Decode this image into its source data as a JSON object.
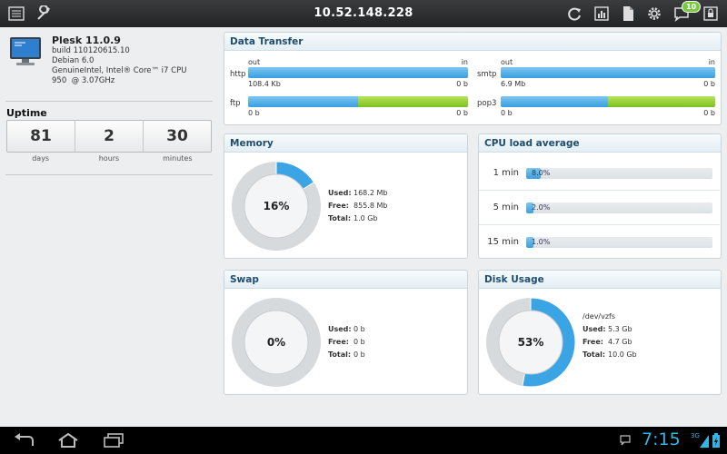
{
  "topbar": {
    "title": "10.52.148.228",
    "notification_count": "10",
    "icons": [
      "list-icon",
      "wrench-icon",
      "refresh-icon",
      "report-icon",
      "document-icon",
      "gear-icon",
      "notification-icon",
      "lock-icon"
    ]
  },
  "system": {
    "product": "Plesk 11.0.9",
    "build": "build 110120615.10",
    "os": "Debian 6.0",
    "cpu": "GenuineIntel, Intel® Core™ i7 CPU      950  @ 3.07GHz"
  },
  "uptime": {
    "title": "Uptime",
    "days": "81",
    "hours": "2",
    "minutes": "30",
    "days_label": "days",
    "hours_label": "hours",
    "minutes_label": "minutes"
  },
  "data_transfer": {
    "title": "Data Transfer",
    "out_label": "out",
    "in_label": "in",
    "services": [
      {
        "name": "http",
        "out": "108.4 Kb",
        "in": "0 b",
        "out_fraction": 1.0
      },
      {
        "name": "smtp",
        "out": "6.9 Mb",
        "in": "0 b",
        "out_fraction": 1.0
      },
      {
        "name": "ftp",
        "out": "0 b",
        "in": "0 b",
        "out_fraction": 0.5
      },
      {
        "name": "pop3",
        "out": "0 b",
        "in": "0 b",
        "out_fraction": 0.5
      }
    ]
  },
  "memory": {
    "title": "Memory",
    "percent": "16%",
    "fraction": 0.16,
    "used_label": "Used:",
    "used": "168.2 Mb",
    "free_label": "Free:",
    "free": "855.8 Mb",
    "total_label": "Total:",
    "total": "1.0 Gb"
  },
  "cpu": {
    "title": "CPU load average",
    "rows": [
      {
        "label": "1 min",
        "value": "8.0%",
        "fraction": 0.08
      },
      {
        "label": "5 min",
        "value": "2.0%",
        "fraction": 0.02
      },
      {
        "label": "15 min",
        "value": "1.0%",
        "fraction": 0.01
      }
    ]
  },
  "swap": {
    "title": "Swap",
    "percent": "0%",
    "fraction": 0.0,
    "used_label": "Used:",
    "used": "0 b",
    "free_label": "Free:",
    "free": "0 b",
    "total_label": "Total:",
    "total": "0 b"
  },
  "disk": {
    "title": "Disk Usage",
    "percent": "53%",
    "fraction": 0.53,
    "mount": "/dev/vzfs",
    "used_label": "Used:",
    "used": "5.3 Gb",
    "free_label": "Free:",
    "free": "4.7 Gb",
    "total_label": "Total:",
    "total": "10.0 Gb"
  },
  "statusbar": {
    "time": "7:15",
    "network": "3G"
  },
  "colors": {
    "accent_blue": "#3a9fdd",
    "accent_green": "#7fc11b",
    "header_text": "#1e4d6e",
    "clock": "#33b5e5"
  }
}
